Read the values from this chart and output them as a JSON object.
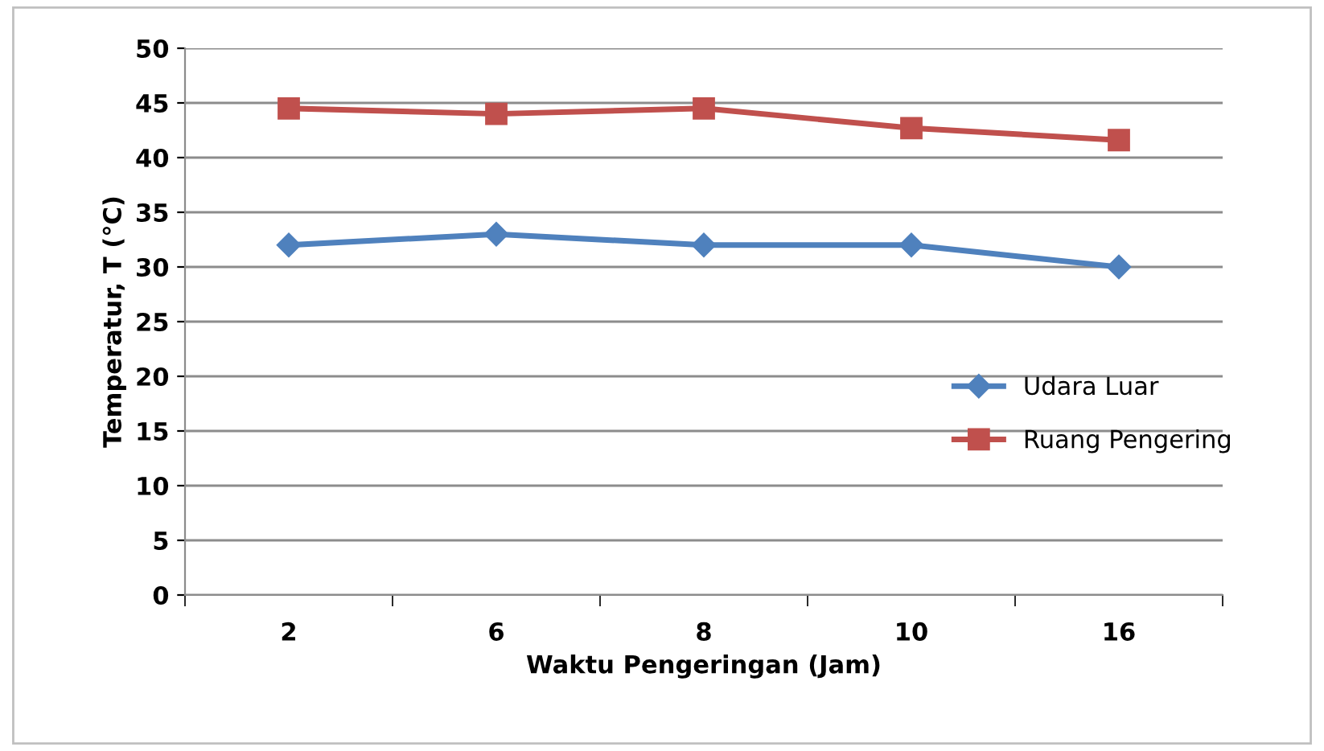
{
  "chart_data": {
    "type": "line",
    "xlabel": "Waktu Pengeringan (Jam)",
    "ylabel": "Temperatur, T (°C)",
    "categories": [
      "2",
      "6",
      "8",
      "10",
      "16"
    ],
    "series": [
      {
        "name": "Udara Luar",
        "color": "#4f81bd",
        "values": [
          32,
          33,
          32,
          32,
          30
        ],
        "marker": "diamond"
      },
      {
        "name": "Ruang Pengering",
        "color": "#c0504d",
        "values": [
          44.5,
          44,
          44.5,
          42.7,
          41.6
        ],
        "marker": "square"
      }
    ],
    "ylim": [
      0,
      50
    ],
    "yticks": [
      0,
      5,
      10,
      15,
      20,
      25,
      30,
      35,
      40,
      45,
      50
    ],
    "grid": "y",
    "legend": "right"
  }
}
